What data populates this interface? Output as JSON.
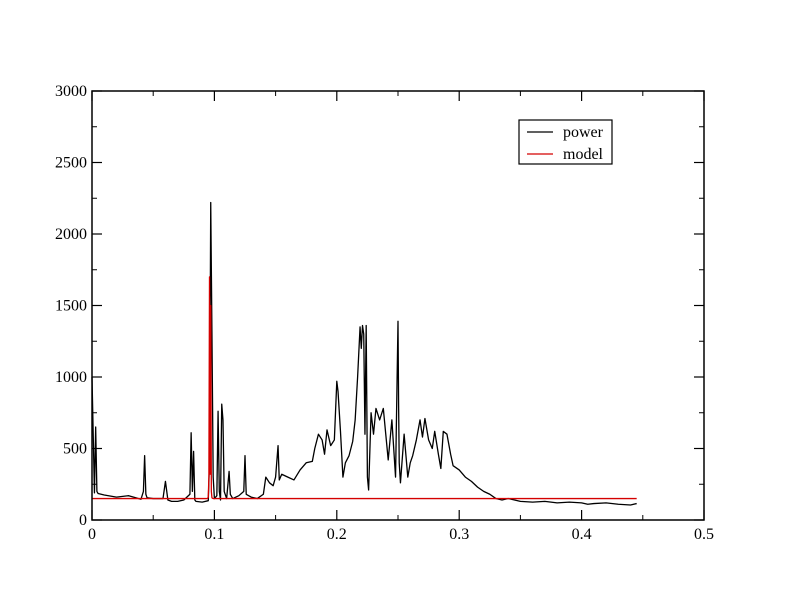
{
  "chart_data": {
    "type": "line",
    "title": "",
    "xlabel": "",
    "ylabel": "",
    "xlim": [
      0,
      0.5
    ],
    "ylim": [
      0,
      3000
    ],
    "x_ticks": [
      0,
      0.1,
      0.2,
      0.3,
      0.4,
      0.5
    ],
    "x_tick_labels": [
      "0",
      "0.1",
      "0.2",
      "0.3",
      "0.4",
      "0.5"
    ],
    "y_ticks": [
      0,
      500,
      1000,
      1500,
      2000,
      2500,
      3000
    ],
    "y_tick_labels": [
      "0",
      "500",
      "1000",
      "1500",
      "2000",
      "2500",
      "3000"
    ],
    "grid": false,
    "legend_position": "top-right",
    "series": [
      {
        "name": "power",
        "color": "#000000",
        "x": [
          0,
          0.002,
          0.003,
          0.004,
          0.005,
          0.01,
          0.02,
          0.03,
          0.04,
          0.042,
          0.043,
          0.044,
          0.045,
          0.05,
          0.058,
          0.06,
          0.062,
          0.065,
          0.07,
          0.075,
          0.08,
          0.081,
          0.082,
          0.083,
          0.084,
          0.085,
          0.09,
          0.095,
          0.096,
          0.097,
          0.098,
          0.099,
          0.1,
          0.102,
          0.103,
          0.104,
          0.105,
          0.106,
          0.107,
          0.108,
          0.11,
          0.112,
          0.113,
          0.115,
          0.12,
          0.124,
          0.125,
          0.126,
          0.13,
          0.135,
          0.14,
          0.142,
          0.145,
          0.148,
          0.15,
          0.152,
          0.153,
          0.155,
          0.16,
          0.165,
          0.17,
          0.175,
          0.18,
          0.182,
          0.185,
          0.188,
          0.19,
          0.192,
          0.195,
          0.198,
          0.2,
          0.201,
          0.203,
          0.205,
          0.207,
          0.21,
          0.213,
          0.215,
          0.217,
          0.219,
          0.22,
          0.221,
          0.222,
          0.223,
          0.224,
          0.225,
          0.226,
          0.228,
          0.23,
          0.232,
          0.235,
          0.238,
          0.24,
          0.242,
          0.245,
          0.248,
          0.25,
          0.2505,
          0.251,
          0.252,
          0.255,
          0.258,
          0.26,
          0.262,
          0.265,
          0.268,
          0.27,
          0.272,
          0.275,
          0.278,
          0.28,
          0.283,
          0.285,
          0.287,
          0.29,
          0.293,
          0.295,
          0.3,
          0.305,
          0.31,
          0.315,
          0.32,
          0.325,
          0.33,
          0.335,
          0.34,
          0.35,
          0.36,
          0.37,
          0.38,
          0.39,
          0.4,
          0.405,
          0.41,
          0.42,
          0.43,
          0.44,
          0.445
        ],
        "y": [
          1000,
          190,
          650,
          200,
          185,
          175,
          160,
          170,
          145,
          200,
          450,
          180,
          155,
          150,
          150,
          270,
          140,
          130,
          130,
          140,
          180,
          610,
          200,
          480,
          140,
          130,
          125,
          135,
          400,
          2220,
          1300,
          300,
          150,
          170,
          760,
          200,
          140,
          810,
          700,
          200,
          150,
          340,
          180,
          150,
          170,
          200,
          450,
          180,
          160,
          150,
          180,
          300,
          260,
          240,
          300,
          520,
          280,
          320,
          300,
          280,
          350,
          400,
          410,
          500,
          600,
          560,
          460,
          630,
          520,
          560,
          970,
          900,
          620,
          300,
          400,
          450,
          550,
          700,
          1000,
          1350,
          1200,
          1360,
          1300,
          600,
          1360,
          300,
          210,
          750,
          600,
          780,
          700,
          780,
          600,
          420,
          700,
          300,
          1390,
          800,
          400,
          260,
          600,
          300,
          400,
          450,
          560,
          700,
          580,
          710,
          560,
          500,
          620,
          460,
          360,
          620,
          600,
          460,
          380,
          350,
          300,
          270,
          230,
          200,
          180,
          150,
          140,
          150,
          130,
          125,
          130,
          120,
          125,
          120,
          110,
          115,
          120,
          110,
          105,
          115
        ]
      },
      {
        "name": "model",
        "color": "#d40000",
        "x": [
          0,
          0.094,
          0.0945,
          0.095,
          0.0955,
          0.096,
          0.0965,
          0.097,
          0.0975,
          0.098,
          0.0985,
          0.099,
          0.445
        ],
        "y": [
          150,
          150,
          152,
          160,
          300,
          1700,
          320,
          1500,
          200,
          155,
          152,
          150,
          150
        ]
      }
    ]
  }
}
